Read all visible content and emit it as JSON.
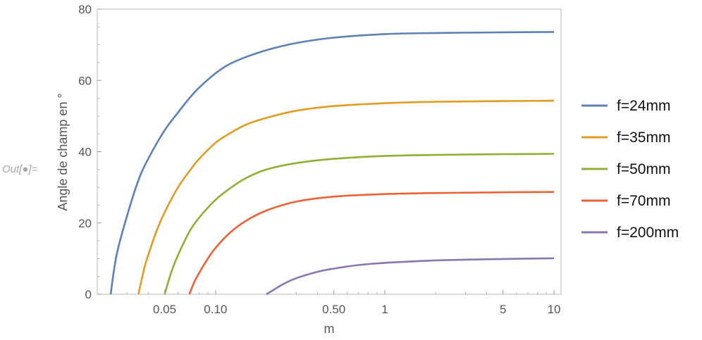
{
  "out_label": "Out[●]=",
  "chart_data": {
    "type": "line",
    "title": "",
    "xlabel": "m",
    "ylabel": "Angle de champ en °",
    "x_scale": "log",
    "xlim": [
      0.02,
      11
    ],
    "ylim": [
      0,
      80
    ],
    "x_ticks": [
      {
        "value": 0.05,
        "label": "0.05"
      },
      {
        "value": 0.1,
        "label": "0.10"
      },
      {
        "value": 0.5,
        "label": "0.50"
      },
      {
        "value": 1,
        "label": "1"
      },
      {
        "value": 5,
        "label": "5"
      },
      {
        "value": 10,
        "label": "10"
      }
    ],
    "y_ticks": [
      {
        "value": 0,
        "label": "0"
      },
      {
        "value": 20,
        "label": "20"
      },
      {
        "value": 40,
        "label": "40"
      },
      {
        "value": 60,
        "label": "60"
      },
      {
        "value": 80,
        "label": "80"
      }
    ],
    "grid": false,
    "legend_position": "right",
    "series": [
      {
        "name": "f=24mm",
        "color": "#5e81b5",
        "x": [
          0.024,
          0.026,
          0.03,
          0.035,
          0.04,
          0.05,
          0.06,
          0.07,
          0.08,
          0.1,
          0.12,
          0.15,
          0.2,
          0.3,
          0.5,
          1,
          2,
          5,
          10
        ],
        "y": [
          0,
          11,
          22,
          32,
          38,
          46,
          51,
          55,
          58,
          62,
          64.5,
          66.5,
          68.5,
          70.5,
          72,
          73,
          73.3,
          73.5,
          73.6
        ]
      },
      {
        "name": "f=35mm",
        "color": "#e19c24",
        "x": [
          0.035,
          0.038,
          0.04,
          0.045,
          0.05,
          0.06,
          0.07,
          0.08,
          0.1,
          0.12,
          0.15,
          0.2,
          0.3,
          0.5,
          1,
          2,
          5,
          10
        ],
        "y": [
          0,
          7.5,
          11,
          18,
          23,
          30,
          34.5,
          38,
          42.5,
          45,
          47.5,
          49.5,
          51.5,
          52.8,
          53.6,
          54,
          54.2,
          54.3
        ]
      },
      {
        "name": "f=50mm",
        "color": "#8fb032",
        "x": [
          0.05,
          0.055,
          0.06,
          0.07,
          0.08,
          0.1,
          0.12,
          0.15,
          0.2,
          0.3,
          0.5,
          1,
          2,
          5,
          10
        ],
        "y": [
          0,
          6.5,
          11,
          17.5,
          21.5,
          26.5,
          29.5,
          32.5,
          35,
          36.8,
          38,
          38.8,
          39.1,
          39.3,
          39.4
        ]
      },
      {
        "name": "f=70mm",
        "color": "#eb6235",
        "x": [
          0.07,
          0.075,
          0.08,
          0.09,
          0.1,
          0.12,
          0.15,
          0.2,
          0.3,
          0.5,
          1,
          2,
          5,
          10
        ],
        "y": [
          0,
          3.5,
          6,
          10,
          13,
          17,
          20.5,
          23.5,
          26,
          27.4,
          28.1,
          28.4,
          28.6,
          28.7
        ]
      },
      {
        "name": "f=200mm",
        "color": "#8778b3",
        "x": [
          0.2,
          0.22,
          0.25,
          0.3,
          0.4,
          0.5,
          0.7,
          1,
          2,
          5,
          10
        ],
        "y": [
          0,
          1.2,
          2.8,
          4.5,
          6.3,
          7.2,
          8.2,
          8.8,
          9.5,
          9.9,
          10.1
        ]
      }
    ]
  }
}
